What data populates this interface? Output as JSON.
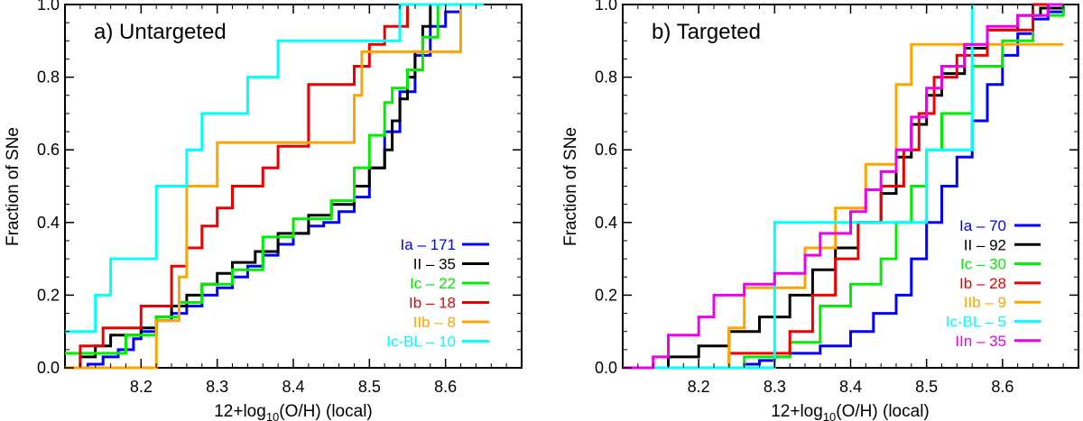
{
  "chart_data": [
    {
      "type": "line",
      "step": true,
      "title": "a) Untargeted",
      "xlabel": "12+log10(O/H) (local)",
      "xlabel_parts": {
        "pre": "12+log",
        "sub": "10",
        "post": "(O/H) (local)"
      },
      "ylabel": "Fraction of SNe",
      "xlim": [
        8.1,
        8.7
      ],
      "ylim": [
        0.0,
        1.0
      ],
      "xticks": [
        "8.2",
        "8.3",
        "8.4",
        "8.5",
        "8.6"
      ],
      "yticks": [
        "0.0",
        "0.2",
        "0.4",
        "0.6",
        "0.8",
        "1.0"
      ],
      "legend_position": "lower-right",
      "series": [
        {
          "name": "Ia",
          "count": "171",
          "color": "#0000ff",
          "x": [
            8.1,
            8.13,
            8.15,
            8.17,
            8.19,
            8.2,
            8.22,
            8.24,
            8.26,
            8.28,
            8.3,
            8.32,
            8.34,
            8.36,
            8.38,
            8.4,
            8.42,
            8.44,
            8.46,
            8.48,
            8.5,
            8.52,
            8.54,
            8.56,
            8.58,
            8.6,
            8.62,
            8.65
          ],
          "y": [
            0.0,
            0.01,
            0.03,
            0.05,
            0.08,
            0.1,
            0.13,
            0.15,
            0.17,
            0.2,
            0.22,
            0.25,
            0.28,
            0.31,
            0.34,
            0.37,
            0.39,
            0.4,
            0.43,
            0.47,
            0.55,
            0.65,
            0.76,
            0.86,
            0.94,
            0.98,
            1.0,
            1.0
          ]
        },
        {
          "name": "II",
          "count": "35",
          "color": "#000000",
          "x": [
            8.1,
            8.12,
            8.14,
            8.16,
            8.2,
            8.22,
            8.24,
            8.26,
            8.28,
            8.3,
            8.32,
            8.35,
            8.38,
            8.42,
            8.45,
            8.48,
            8.5,
            8.52,
            8.53,
            8.54,
            8.55,
            8.56,
            8.57,
            8.58,
            8.65
          ],
          "y": [
            0.0,
            0.03,
            0.06,
            0.09,
            0.11,
            0.14,
            0.17,
            0.2,
            0.23,
            0.26,
            0.29,
            0.32,
            0.37,
            0.42,
            0.45,
            0.5,
            0.55,
            0.6,
            0.68,
            0.74,
            0.8,
            0.87,
            0.94,
            1.0,
            1.0
          ]
        },
        {
          "name": "Ic",
          "count": "22",
          "color": "#00ee00",
          "x": [
            8.1,
            8.18,
            8.22,
            8.25,
            8.28,
            8.32,
            8.36,
            8.4,
            8.45,
            8.48,
            8.5,
            8.52,
            8.53,
            8.55,
            8.57,
            8.59,
            8.65
          ],
          "y": [
            0.04,
            0.09,
            0.14,
            0.18,
            0.23,
            0.27,
            0.36,
            0.41,
            0.46,
            0.55,
            0.64,
            0.73,
            0.77,
            0.82,
            0.91,
            1.0,
            1.0
          ]
        },
        {
          "name": "Ib",
          "count": "18",
          "color": "#ee0000",
          "x": [
            8.1,
            8.12,
            8.15,
            8.2,
            8.24,
            8.26,
            8.28,
            8.3,
            8.32,
            8.36,
            8.38,
            8.42,
            8.48,
            8.5,
            8.52,
            8.55,
            8.57,
            8.65
          ],
          "y": [
            0.0,
            0.06,
            0.11,
            0.17,
            0.28,
            0.33,
            0.39,
            0.44,
            0.5,
            0.55,
            0.61,
            0.78,
            0.83,
            0.89,
            0.94,
            1.0,
            1.0,
            1.0
          ]
        },
        {
          "name": "IIb",
          "count": "8",
          "color": "#ffa500",
          "x": [
            8.1,
            8.22,
            8.25,
            8.26,
            8.3,
            8.48,
            8.49,
            8.58,
            8.62,
            8.65
          ],
          "y": [
            0.0,
            0.13,
            0.25,
            0.5,
            0.62,
            0.75,
            0.87,
            0.87,
            1.0,
            1.0
          ]
        },
        {
          "name": "Ic-BL",
          "count": "10",
          "color": "#00ffff",
          "x": [
            8.1,
            8.14,
            8.16,
            8.22,
            8.26,
            8.28,
            8.34,
            8.38,
            8.48,
            8.54,
            8.65
          ],
          "y": [
            0.1,
            0.2,
            0.3,
            0.5,
            0.6,
            0.7,
            0.8,
            0.9,
            0.9,
            1.0,
            1.0
          ]
        }
      ],
      "legend_labels": [
        "Ia – 171",
        "II – 35",
        "Ic – 22",
        "Ib – 18",
        "IIb – 8",
        "Ic-BL – 10"
      ]
    },
    {
      "type": "line",
      "step": true,
      "title": "b) Targeted",
      "xlabel": "12+log10(O/H) (local)",
      "xlabel_parts": {
        "pre": "12+log",
        "sub": "10",
        "post": "(O/H) (local)"
      },
      "ylabel": "Fraction of SNe",
      "xlim": [
        8.1,
        8.7
      ],
      "ylim": [
        0.0,
        1.0
      ],
      "xticks": [
        "8.2",
        "8.3",
        "8.4",
        "8.5",
        "8.6"
      ],
      "yticks": [
        "0.0",
        "0.2",
        "0.4",
        "0.6",
        "0.8",
        "1.0"
      ],
      "legend_position": "lower-right",
      "series": [
        {
          "name": "Ia",
          "count": "70",
          "color": "#0000ff",
          "x": [
            8.1,
            8.26,
            8.28,
            8.3,
            8.32,
            8.36,
            8.4,
            8.43,
            8.46,
            8.48,
            8.5,
            8.52,
            8.54,
            8.56,
            8.58,
            8.6,
            8.62,
            8.64,
            8.66,
            8.68
          ],
          "y": [
            0.0,
            0.01,
            0.02,
            0.03,
            0.04,
            0.06,
            0.1,
            0.15,
            0.2,
            0.3,
            0.4,
            0.5,
            0.58,
            0.68,
            0.78,
            0.86,
            0.92,
            0.96,
            0.98,
            1.0
          ]
        },
        {
          "name": "II",
          "count": "92",
          "color": "#000000",
          "x": [
            8.1,
            8.16,
            8.2,
            8.24,
            8.28,
            8.32,
            8.35,
            8.38,
            8.41,
            8.44,
            8.46,
            8.48,
            8.5,
            8.52,
            8.55,
            8.58,
            8.62,
            8.65,
            8.68
          ],
          "y": [
            0.0,
            0.03,
            0.06,
            0.1,
            0.14,
            0.2,
            0.27,
            0.33,
            0.4,
            0.48,
            0.58,
            0.67,
            0.75,
            0.81,
            0.88,
            0.93,
            0.97,
            0.99,
            1.0
          ]
        },
        {
          "name": "Ic",
          "count": "30",
          "color": "#00ee00",
          "x": [
            8.1,
            8.26,
            8.32,
            8.36,
            8.4,
            8.44,
            8.46,
            8.48,
            8.5,
            8.52,
            8.56,
            8.6,
            8.64,
            8.68
          ],
          "y": [
            0.0,
            0.03,
            0.07,
            0.17,
            0.23,
            0.3,
            0.4,
            0.5,
            0.6,
            0.7,
            0.83,
            0.9,
            0.97,
            1.0
          ]
        },
        {
          "name": "Ib",
          "count": "28",
          "color": "#ee0000",
          "x": [
            8.1,
            8.24,
            8.32,
            8.35,
            8.38,
            8.41,
            8.44,
            8.47,
            8.49,
            8.51,
            8.54,
            8.58,
            8.64,
            8.68
          ],
          "y": [
            0.0,
            0.04,
            0.1,
            0.2,
            0.3,
            0.4,
            0.5,
            0.6,
            0.7,
            0.8,
            0.86,
            0.93,
            1.0,
            1.0
          ]
        },
        {
          "name": "IIb",
          "count": "9",
          "color": "#ffa500",
          "x": [
            8.1,
            8.24,
            8.26,
            8.34,
            8.38,
            8.42,
            8.46,
            8.48,
            8.68
          ],
          "y": [
            0.0,
            0.11,
            0.22,
            0.33,
            0.44,
            0.56,
            0.78,
            0.89,
            0.89
          ]
        },
        {
          "name": "Ic-BL",
          "count": "5",
          "color": "#00ffff",
          "x": [
            8.1,
            8.3,
            8.48,
            8.5,
            8.56
          ],
          "y": [
            0.0,
            0.4,
            0.4,
            0.6,
            1.0
          ]
        },
        {
          "name": "IIn",
          "count": "35",
          "color": "#ee00ee",
          "x": [
            8.1,
            8.14,
            8.16,
            8.2,
            8.22,
            8.26,
            8.3,
            8.34,
            8.36,
            8.4,
            8.42,
            8.44,
            8.46,
            8.48,
            8.5,
            8.52,
            8.55,
            8.58,
            8.62,
            8.66,
            8.68
          ],
          "y": [
            0.0,
            0.03,
            0.09,
            0.14,
            0.2,
            0.23,
            0.26,
            0.31,
            0.37,
            0.43,
            0.49,
            0.54,
            0.6,
            0.69,
            0.77,
            0.83,
            0.89,
            0.94,
            0.97,
            1.0,
            1.0
          ]
        }
      ],
      "legend_labels": [
        "Ia – 70",
        "II – 92",
        "Ic – 30",
        "Ib – 28",
        "IIb – 9",
        "Ic-BL – 5",
        "IIn – 35"
      ]
    }
  ]
}
